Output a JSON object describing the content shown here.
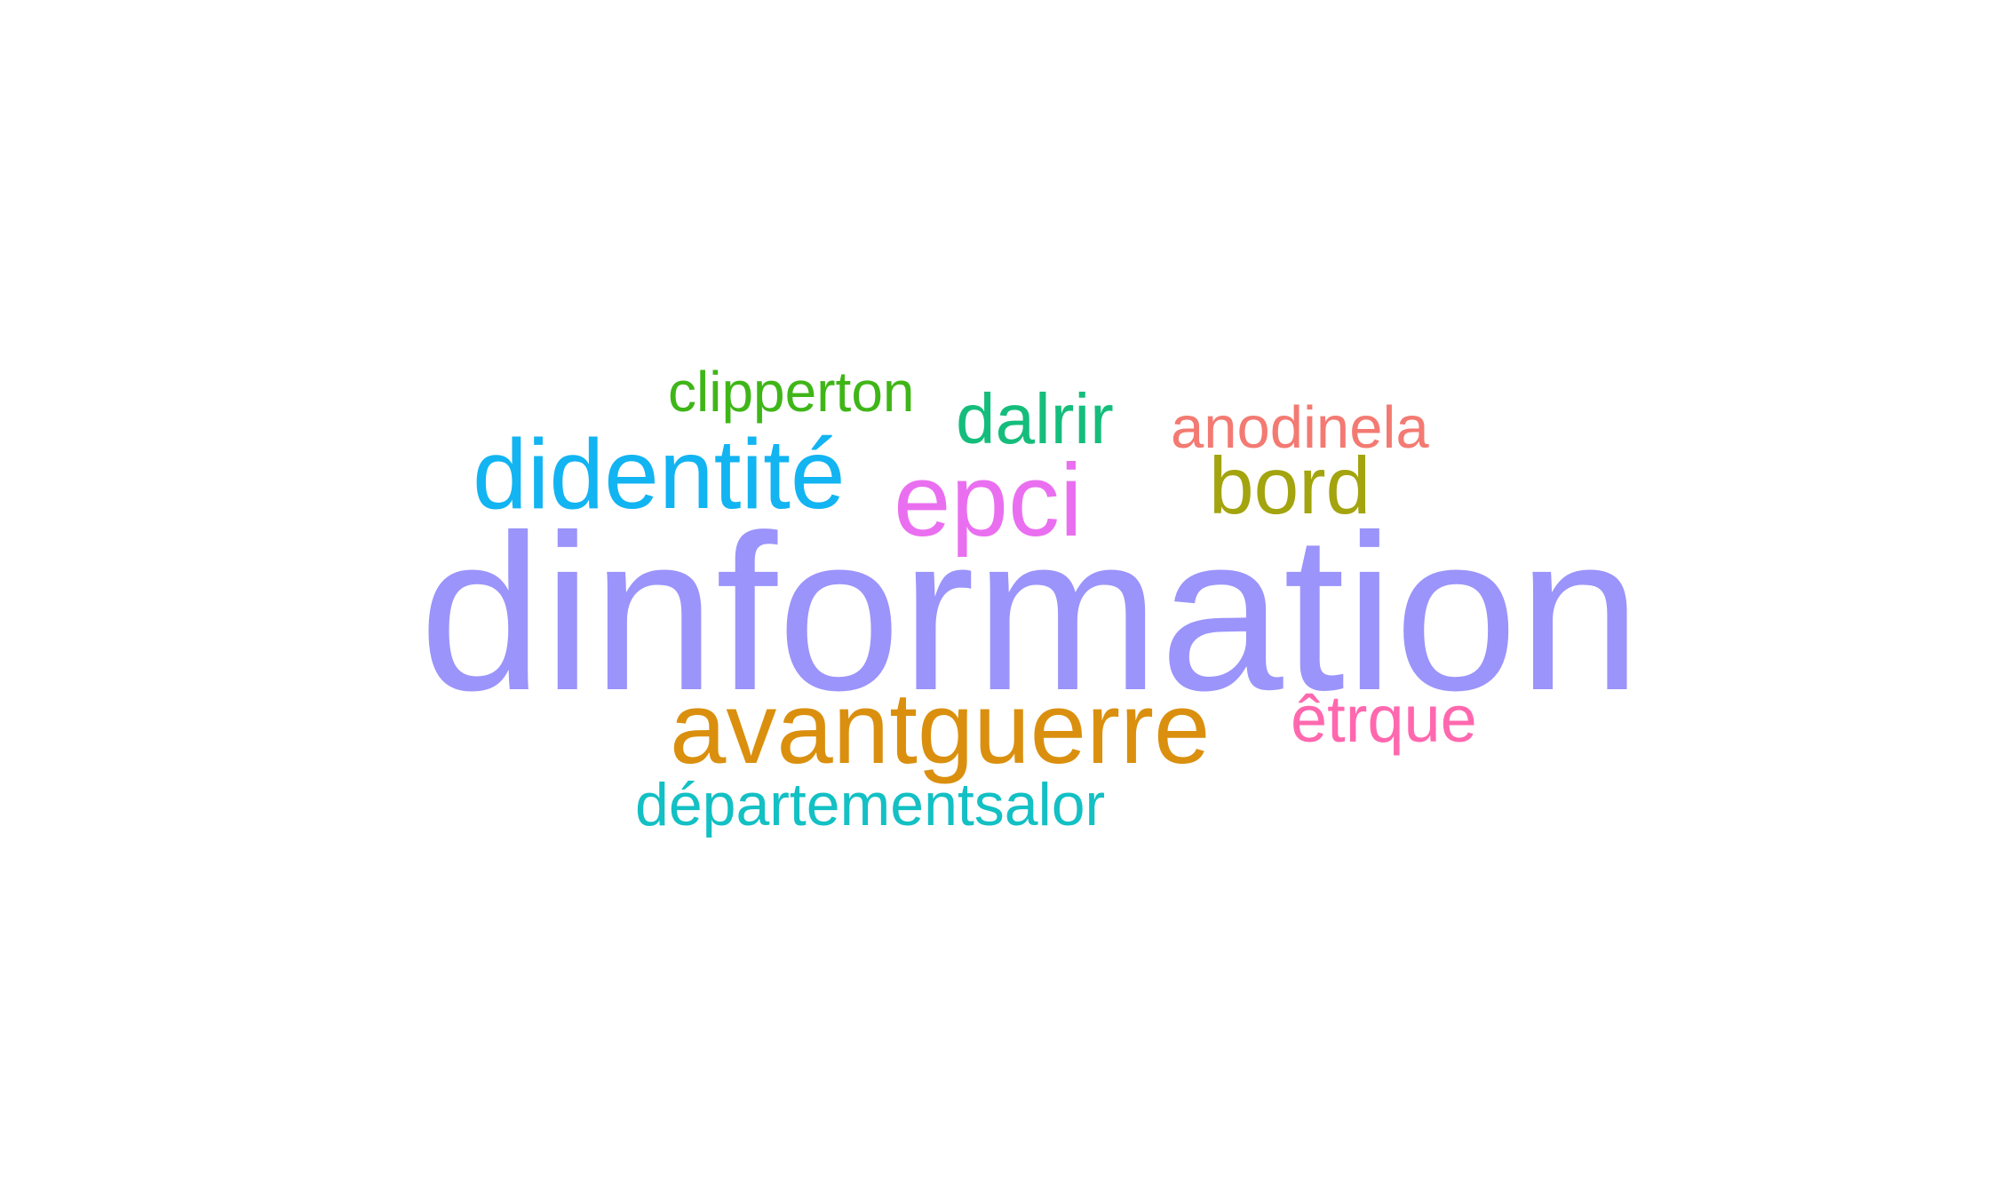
{
  "words": [
    {
      "text": "dinformation",
      "color": "#9b94fb",
      "weight": 1
    },
    {
      "text": "didentité",
      "color": "#12b4f2",
      "weight": 2
    },
    {
      "text": "epci",
      "color": "#ea6ff0",
      "weight": 2
    },
    {
      "text": "bord",
      "color": "#a3a40e",
      "weight": 3
    },
    {
      "text": "clipperton",
      "color": "#3fb618",
      "weight": 4
    },
    {
      "text": "dalrir",
      "color": "#15bd7c",
      "weight": 4
    },
    {
      "text": "anodinela",
      "color": "#f37a72",
      "weight": 4
    },
    {
      "text": "avantguerre",
      "color": "#da900e",
      "weight": 2
    },
    {
      "text": "êtrque",
      "color": "#ff68ae",
      "weight": 4
    },
    {
      "text": "départementsalor",
      "color": "#13c0c4",
      "weight": 4
    }
  ]
}
